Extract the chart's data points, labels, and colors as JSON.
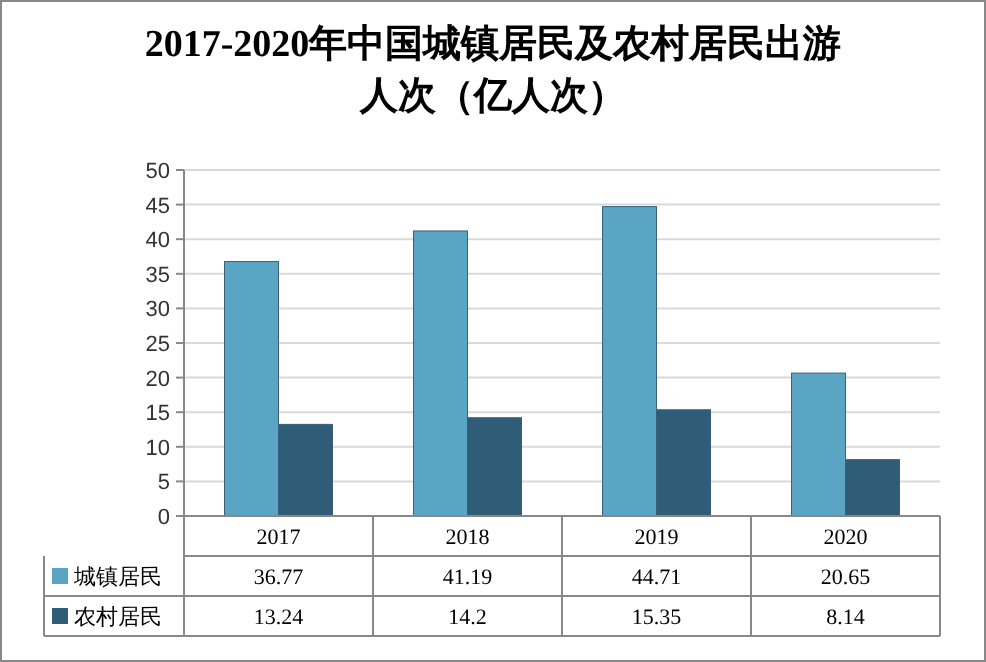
{
  "chart_data": {
    "type": "bar",
    "title": "2017-2020年中国城镇居民及农村居民出游人次（亿人次）",
    "categories": [
      "2017",
      "2018",
      "2019",
      "2020"
    ],
    "series": [
      {
        "name": "城镇居民",
        "color": "#5aa5c4",
        "values": [
          36.77,
          41.19,
          44.71,
          20.65
        ]
      },
      {
        "name": "农村居民",
        "color": "#2f5d78",
        "values": [
          13.24,
          14.2,
          15.35,
          8.14
        ]
      }
    ],
    "ylim": [
      0,
      50
    ],
    "yticks": [
      0,
      5,
      10,
      15,
      20,
      25,
      30,
      35,
      40,
      45,
      50
    ],
    "grid": "y",
    "data_labels": true,
    "legend": "bottom"
  }
}
